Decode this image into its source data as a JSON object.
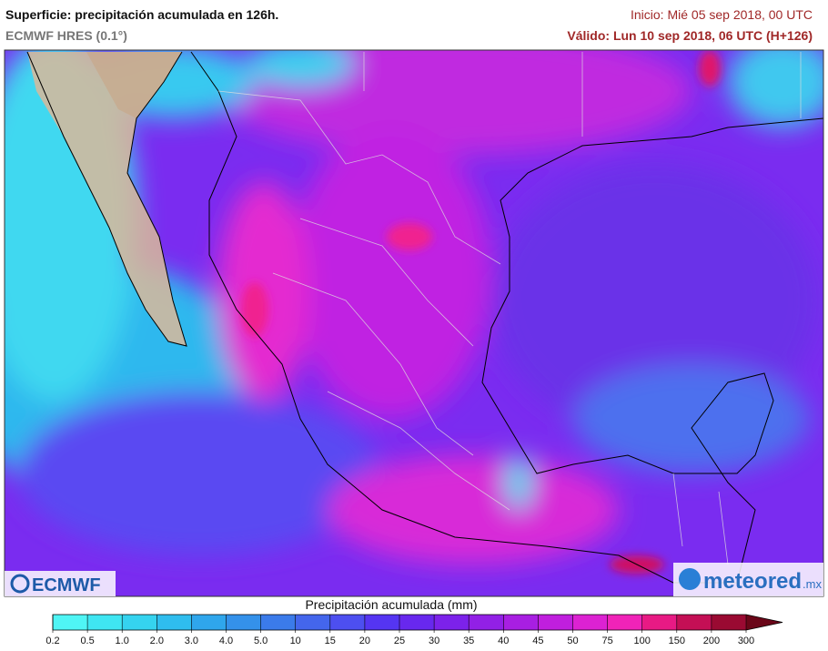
{
  "header": {
    "title": "Superficie: precipitación acumulada en 126h.",
    "subtitle": "ECMWF HRES (0.1°)",
    "start": "Inicio: Mié 05 sep 2018, 00 UTC",
    "valid": "Válido: Lun 10 sep 2018, 06 UTC (H+126)"
  },
  "logos": {
    "left": "ECMWF",
    "right": "meteored",
    "right_suffix": ".mx"
  },
  "legend": {
    "title": "Precipitación acumulada (mm)",
    "ticks": [
      "0.2",
      "0.5",
      "1.0",
      "2.0",
      "3.0",
      "4.0",
      "5.0",
      "10",
      "15",
      "20",
      "25",
      "30",
      "35",
      "40",
      "45",
      "50",
      "75",
      "100",
      "150",
      "200",
      "300"
    ],
    "colors": [
      "#4ff5f5",
      "#3fe6f2",
      "#35d3ef",
      "#2fbdee",
      "#2fa6ec",
      "#3491ea",
      "#3b7bea",
      "#4466ec",
      "#4d4ff0",
      "#5535f2",
      "#6828ee",
      "#7c22ea",
      "#9220e6",
      "#a81fe2",
      "#c01fde",
      "#dc22d2",
      "#f023b8",
      "#e81a84",
      "#c40f55",
      "#9a0a32",
      "#6a0618"
    ]
  }
}
